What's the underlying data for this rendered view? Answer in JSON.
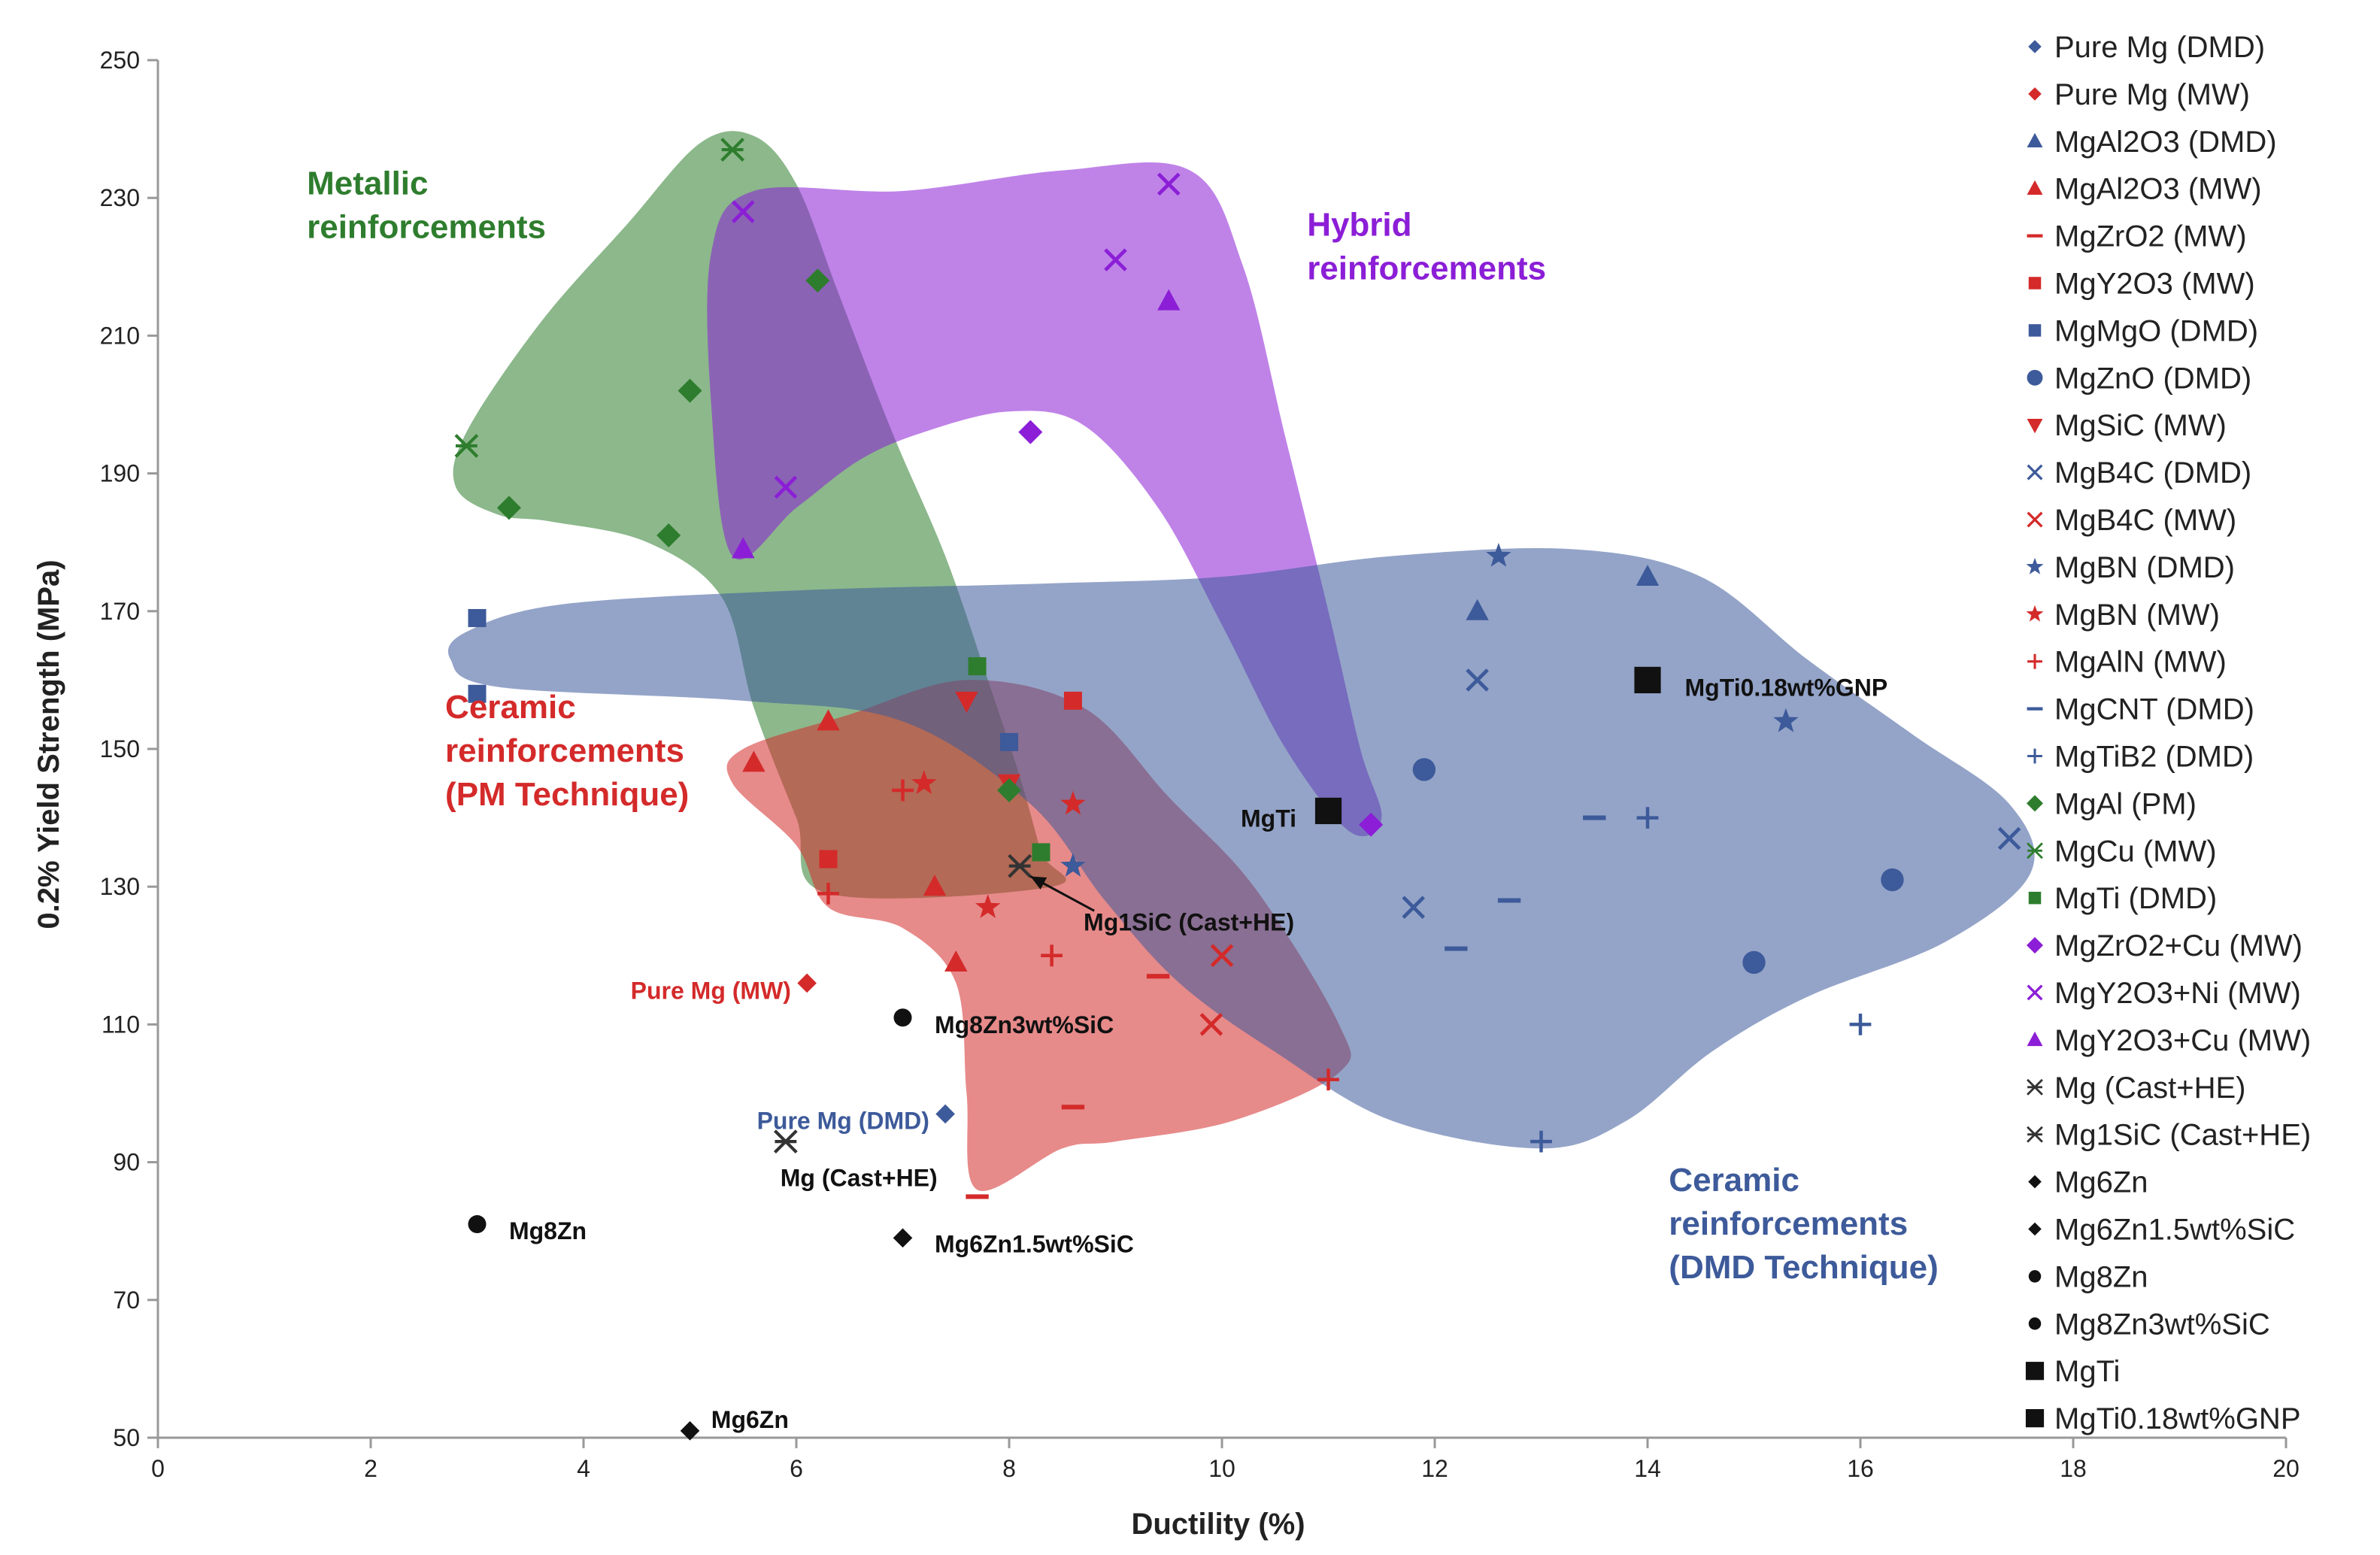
{
  "chart_data": {
    "type": "scatter",
    "xlabel": "Ductility (%)",
    "ylabel": "0.2% Yield Strength (MPa)",
    "xlim": [
      0,
      20
    ],
    "ylim": [
      50,
      250
    ],
    "xticks": [
      0,
      2,
      4,
      6,
      8,
      10,
      12,
      14,
      16,
      18,
      20
    ],
    "yticks": [
      50,
      70,
      90,
      110,
      130,
      150,
      170,
      190,
      210,
      230,
      250
    ],
    "grid": false,
    "legend_position": "right",
    "colors": {
      "blue": "#3d5a9a",
      "red": "#d42a2a",
      "green": "#2e7d2e",
      "purple": "#8b1ed6",
      "black": "#111111",
      "region_green": "#4f9a3a",
      "region_purple": "#a040e0",
      "region_blue": "#5a6f9a",
      "region_red": "#e04040"
    },
    "regions": [
      {
        "name": "Metallic reinforcements",
        "color": "#2e7d2e",
        "outline": [
          [
            2.9,
            196
          ],
          [
            3.6,
            212
          ],
          [
            4.4,
            226
          ],
          [
            5.1,
            238
          ],
          [
            5.6,
            239
          ],
          [
            6.0,
            232
          ],
          [
            6.4,
            216
          ],
          [
            6.9,
            196
          ],
          [
            7.4,
            178
          ],
          [
            7.8,
            160
          ],
          [
            8.1,
            146
          ],
          [
            8.3,
            135
          ],
          [
            8.4,
            130
          ],
          [
            6.3,
            129
          ],
          [
            6.0,
            140
          ],
          [
            5.6,
            156
          ],
          [
            5.3,
            172
          ],
          [
            4.6,
            180
          ],
          [
            3.7,
            183
          ],
          [
            3.2,
            184
          ],
          [
            2.8,
            188
          ]
        ]
      },
      {
        "name": "Hybrid reinforcements",
        "color": "#8b1ed6",
        "outline": [
          [
            5.4,
            178
          ],
          [
            5.2,
            200
          ],
          [
            5.2,
            222
          ],
          [
            5.6,
            231
          ],
          [
            7.0,
            231
          ],
          [
            8.5,
            234
          ],
          [
            9.7,
            234
          ],
          [
            10.2,
            220
          ],
          [
            10.6,
            195
          ],
          [
            11.0,
            170
          ],
          [
            11.3,
            150
          ],
          [
            11.5,
            140
          ],
          [
            11.2,
            138
          ],
          [
            10.6,
            150
          ],
          [
            10.0,
            168
          ],
          [
            9.4,
            185
          ],
          [
            8.7,
            197
          ],
          [
            8.0,
            199
          ],
          [
            7.2,
            196
          ],
          [
            6.6,
            192
          ],
          [
            6.0,
            185
          ]
        ]
      },
      {
        "name": "Ceramic reinforcements (PM Technique)",
        "color": "#d42a2a",
        "outline": [
          [
            5.5,
            150
          ],
          [
            6.5,
            155
          ],
          [
            7.6,
            160
          ],
          [
            8.7,
            156
          ],
          [
            9.5,
            143
          ],
          [
            10.3,
            130
          ],
          [
            11.1,
            110
          ],
          [
            11.1,
            103
          ],
          [
            10.1,
            96
          ],
          [
            9.0,
            93
          ],
          [
            8.5,
            92
          ],
          [
            7.7,
            86
          ],
          [
            7.6,
            100
          ],
          [
            7.5,
            116
          ],
          [
            7.0,
            124
          ],
          [
            6.3,
            127
          ],
          [
            6.0,
            136
          ],
          [
            5.4,
            145
          ]
        ]
      },
      {
        "name": "Ceramic reinforcements (DMD Technique)",
        "color": "#3d5a9a",
        "outline": [
          [
            2.9,
            167
          ],
          [
            3.8,
            171
          ],
          [
            6.0,
            173
          ],
          [
            8.3,
            174
          ],
          [
            10.0,
            175
          ],
          [
            11.6,
            178
          ],
          [
            13.3,
            179
          ],
          [
            14.5,
            175
          ],
          [
            15.5,
            163
          ],
          [
            16.5,
            152
          ],
          [
            17.4,
            142
          ],
          [
            17.6,
            132
          ],
          [
            16.8,
            122
          ],
          [
            15.5,
            114
          ],
          [
            14.6,
            106
          ],
          [
            13.8,
            96
          ],
          [
            13.0,
            92
          ],
          [
            11.6,
            96
          ],
          [
            10.5,
            106
          ],
          [
            9.6,
            116
          ],
          [
            8.9,
            128
          ],
          [
            8.2,
            142
          ],
          [
            7.0,
            154
          ],
          [
            5.5,
            157
          ],
          [
            3.2,
            159
          ],
          [
            2.75,
            163
          ]
        ]
      }
    ],
    "region_labels": [
      {
        "lines": [
          "Metallic",
          "reinforcements"
        ],
        "x": 1.4,
        "y": 230.5,
        "color": "#2e7d2e"
      },
      {
        "lines": [
          "Hybrid",
          "reinforcements"
        ],
        "x": 10.8,
        "y": 224.5,
        "color": "#8b1ed6"
      },
      {
        "lines": [
          "Ceramic",
          "reinforcements",
          "(PM Technique)"
        ],
        "x": 2.7,
        "y": 154.5,
        "color": "#d42a2a"
      },
      {
        "lines": [
          "Ceramic",
          "reinforcements",
          "(DMD Technique)"
        ],
        "x": 14.2,
        "y": 85.8,
        "color": "#3d5a9a"
      }
    ],
    "series": [
      {
        "name": "Pure Mg (DMD)",
        "marker": "diamond-small",
        "color": "#3d5a9a",
        "points": [
          [
            7.4,
            97
          ]
        ]
      },
      {
        "name": "Pure Mg (MW)",
        "marker": "diamond-small",
        "color": "#d42a2a",
        "points": [
          [
            6.1,
            116
          ]
        ]
      },
      {
        "name": "MgAl2O3 (DMD)",
        "marker": "triangle",
        "color": "#3d5a9a",
        "points": [
          [
            12.4,
            170
          ],
          [
            14,
            175
          ]
        ]
      },
      {
        "name": "MgAl2O3 (MW)",
        "marker": "triangle",
        "color": "#d42a2a",
        "points": [
          [
            5.6,
            148
          ],
          [
            6.3,
            154
          ],
          [
            7.3,
            130
          ],
          [
            7.5,
            119
          ]
        ]
      },
      {
        "name": "MgZrO2 (MW)",
        "marker": "dash",
        "color": "#d42a2a",
        "points": [
          [
            8.6,
            98
          ],
          [
            9.4,
            117
          ],
          [
            7.7,
            85
          ]
        ]
      },
      {
        "name": "MgY2O3 (MW)",
        "marker": "square",
        "color": "#d42a2a",
        "points": [
          [
            8.6,
            157
          ],
          [
            6.3,
            134
          ]
        ]
      },
      {
        "name": "MgMgO (DMD)",
        "marker": "square",
        "color": "#3d5a9a",
        "points": [
          [
            3,
            169
          ],
          [
            3,
            158
          ],
          [
            8,
            151
          ]
        ]
      },
      {
        "name": "MgZnO (DMD)",
        "marker": "circle",
        "color": "#3d5a9a",
        "points": [
          [
            11.9,
            147
          ],
          [
            15,
            119
          ],
          [
            16.3,
            131
          ]
        ]
      },
      {
        "name": "MgSiC (MW)",
        "marker": "triangle-down",
        "color": "#d42a2a",
        "points": [
          [
            7.6,
            157
          ],
          [
            8,
            145
          ]
        ]
      },
      {
        "name": "MgB4C (DMD)",
        "marker": "x",
        "color": "#3d5a9a",
        "points": [
          [
            12.4,
            160
          ],
          [
            11.8,
            127
          ],
          [
            17.4,
            137
          ]
        ]
      },
      {
        "name": "MgB4C (MW)",
        "marker": "x",
        "color": "#d42a2a",
        "points": [
          [
            9.9,
            110
          ],
          [
            10,
            120
          ]
        ]
      },
      {
        "name": "MgBN (DMD)",
        "marker": "star",
        "color": "#3d5a9a",
        "points": [
          [
            12.6,
            178
          ],
          [
            15.3,
            154
          ],
          [
            8.6,
            133
          ]
        ]
      },
      {
        "name": "MgBN (MW)",
        "marker": "star",
        "color": "#d42a2a",
        "points": [
          [
            7.2,
            145
          ],
          [
            7.8,
            127
          ],
          [
            8.6,
            142
          ]
        ]
      },
      {
        "name": "MgAlN (MW)",
        "marker": "plus",
        "color": "#d42a2a",
        "points": [
          [
            6.3,
            129
          ],
          [
            8.4,
            120
          ],
          [
            11,
            102
          ],
          [
            7,
            144
          ]
        ]
      },
      {
        "name": "MgCNT (DMD)",
        "marker": "dash",
        "color": "#3d5a9a",
        "points": [
          [
            13.5,
            140
          ],
          [
            12.7,
            128
          ],
          [
            12.2,
            121
          ]
        ]
      },
      {
        "name": "MgTiB2 (DMD)",
        "marker": "plus",
        "color": "#3d5a9a",
        "points": [
          [
            14,
            140
          ],
          [
            16,
            110
          ],
          [
            13,
            93
          ]
        ]
      },
      {
        "name": "MgAl (PM)",
        "marker": "diamond",
        "color": "#2e7d2e",
        "points": [
          [
            6.2,
            218
          ],
          [
            5,
            202
          ],
          [
            3.3,
            185
          ],
          [
            4.8,
            181
          ],
          [
            8,
            144
          ]
        ]
      },
      {
        "name": "MgCu (MW)",
        "marker": "x-star",
        "color": "#2e7d2e",
        "points": [
          [
            5.4,
            237
          ],
          [
            2.9,
            194
          ]
        ]
      },
      {
        "name": "MgTi (DMD)",
        "marker": "square",
        "color": "#2e7d2e",
        "points": [
          [
            7.7,
            162
          ],
          [
            8.3,
            135
          ]
        ]
      },
      {
        "name": "MgZrO2+Cu (MW)",
        "marker": "diamond",
        "color": "#8b1ed6",
        "points": [
          [
            8.2,
            196
          ],
          [
            11.4,
            139
          ]
        ]
      },
      {
        "name": "MgY2O3+Ni (MW)",
        "marker": "x",
        "color": "#8b1ed6",
        "points": [
          [
            9.5,
            232
          ],
          [
            9,
            221
          ],
          [
            5.5,
            228
          ],
          [
            5.9,
            188
          ]
        ]
      },
      {
        "name": "MgY2O3+Cu (MW)",
        "marker": "triangle",
        "color": "#8b1ed6",
        "points": [
          [
            9.5,
            215
          ],
          [
            5.5,
            179
          ]
        ]
      },
      {
        "name": "Mg (Cast+HE)",
        "marker": "x-star",
        "color": "#333333",
        "points": [
          [
            5.9,
            93
          ]
        ]
      },
      {
        "name": "Mg1SiC (Cast+HE)",
        "marker": "x-star",
        "color": "#333333",
        "points": [
          [
            8.1,
            133
          ]
        ]
      },
      {
        "name": "Mg6Zn",
        "marker": "diamond-small",
        "color": "#111111",
        "points": [
          [
            5,
            51
          ]
        ]
      },
      {
        "name": "Mg6Zn1.5wt%SiC",
        "marker": "diamond-small",
        "color": "#111111",
        "points": [
          [
            7,
            79
          ]
        ]
      },
      {
        "name": "Mg8Zn",
        "marker": "circle-small",
        "color": "#111111",
        "points": [
          [
            3,
            81
          ]
        ]
      },
      {
        "name": "Mg8Zn3wt%SiC",
        "marker": "circle-small",
        "color": "#111111",
        "points": [
          [
            7,
            111
          ]
        ]
      },
      {
        "name": "MgTi",
        "marker": "square-big",
        "color": "#111111",
        "points": [
          [
            11,
            141
          ]
        ]
      },
      {
        "name": "MgTi0.18wt%GNP",
        "marker": "square-big",
        "color": "#111111",
        "points": [
          [
            14,
            160
          ]
        ]
      }
    ],
    "annotations": [
      {
        "text": "Pure Mg (MW)",
        "x": 5.95,
        "y": 114.8,
        "anchor": "end",
        "color": "#d42a2a"
      },
      {
        "text": "Pure Mg (DMD)",
        "x": 7.25,
        "y": 95.9,
        "anchor": "end",
        "color": "#3d5a9a"
      },
      {
        "text": "Mg (Cast+HE)",
        "x": 5.85,
        "y": 87.6,
        "anchor": "start",
        "color": "#111111"
      },
      {
        "text": "Mg6Zn1.5wt%SiC",
        "x": 7.3,
        "y": 78.0,
        "anchor": "start",
        "color": "#111111"
      },
      {
        "text": "Mg8Zn",
        "x": 3.3,
        "y": 79.9,
        "anchor": "start",
        "color": "#111111"
      },
      {
        "text": "Mg8Zn3wt%SiC",
        "x": 7.3,
        "y": 109.8,
        "anchor": "start",
        "color": "#111111"
      },
      {
        "text": "Mg6Zn",
        "x": 5.2,
        "y": 52.5,
        "anchor": "start",
        "color": "#111111"
      },
      {
        "text": "Mg1SiC (Cast+HE)",
        "x": 8.7,
        "y": 124.7,
        "anchor": "start",
        "color": "#111111"
      },
      {
        "text": "MgTi",
        "x": 10.7,
        "y": 139.8,
        "anchor": "end",
        "color": "#111111"
      },
      {
        "text": "MgTi0.18wt%GNP",
        "x": 14.35,
        "y": 158.8,
        "anchor": "start",
        "color": "#111111"
      }
    ],
    "arrows": [
      {
        "from": [
          8.8,
          126.5
        ],
        "to": [
          8.2,
          131.5
        ]
      }
    ]
  }
}
